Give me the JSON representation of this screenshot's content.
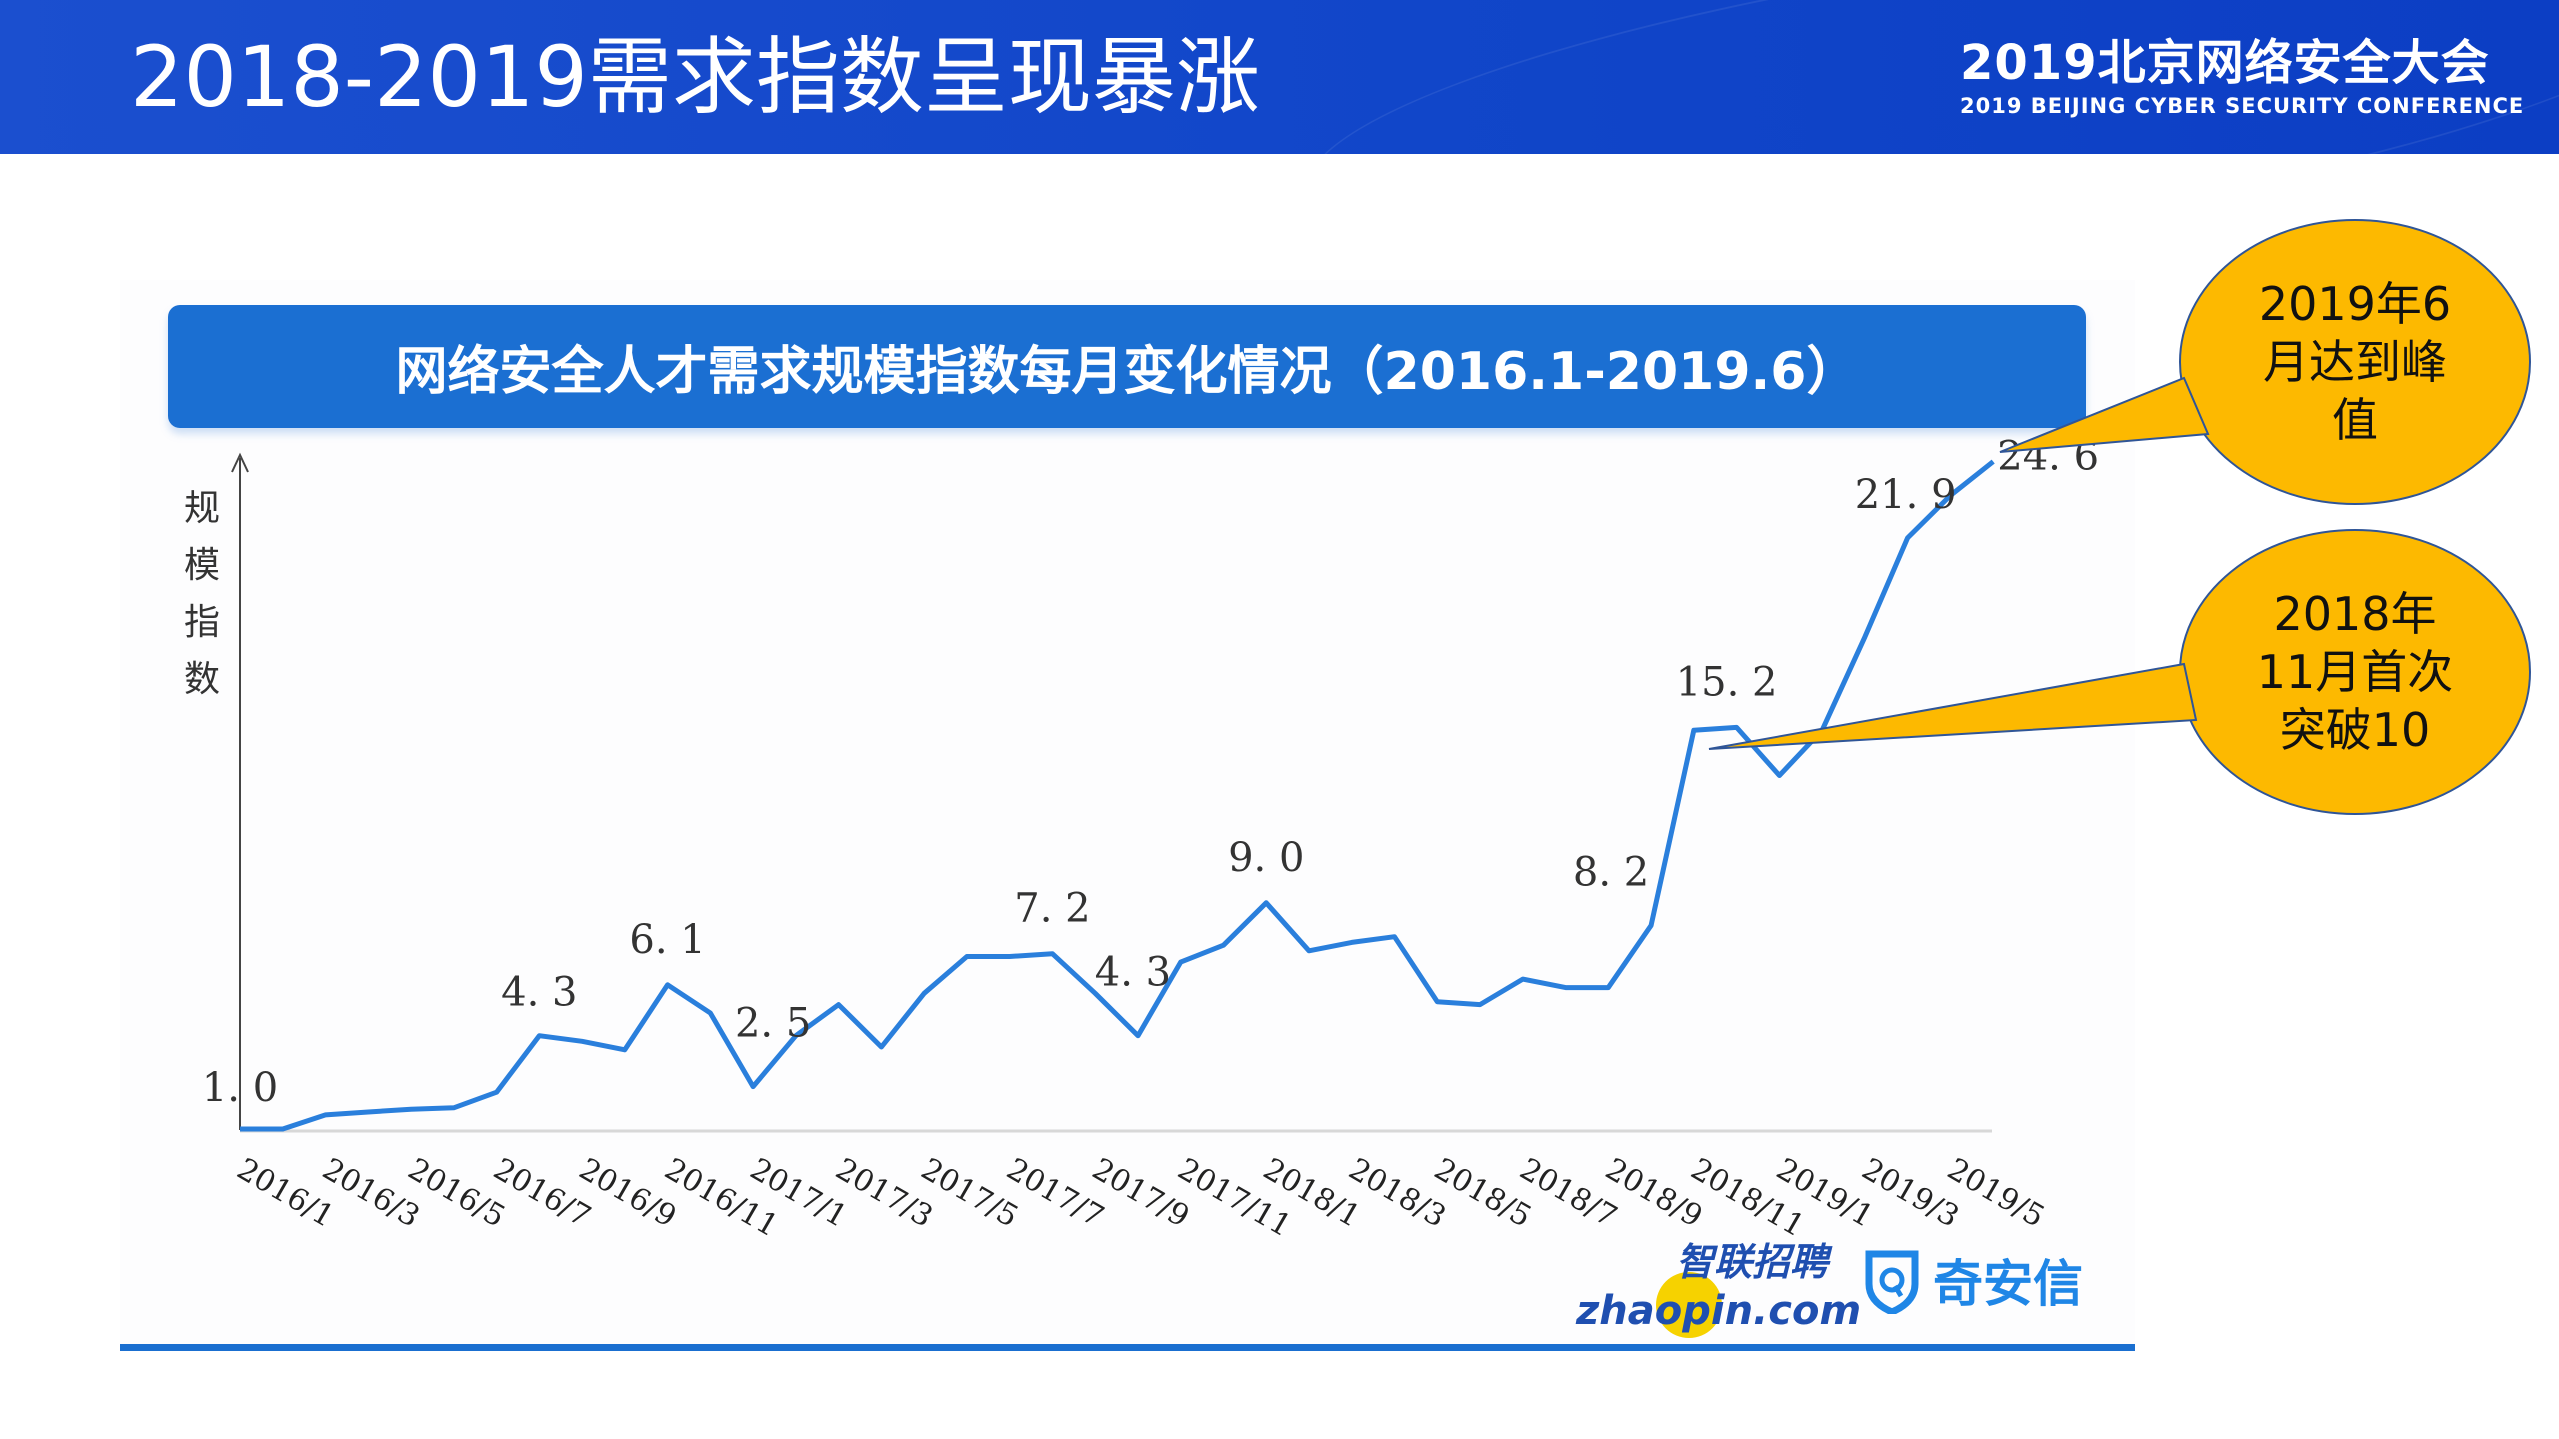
{
  "header": {
    "title": "2018-2019需求指数呈现暴涨",
    "conference_cn": "2019北京网络安全大会",
    "conference_en": "2019 BEIJING CYBER SECURITY CONFERENCE"
  },
  "colors": {
    "header_blue": "#1146c9",
    "title_bar_blue": "#1b6fd2",
    "line_blue": "#2a7fdc",
    "callout_fill": "#fdb900",
    "callout_stroke": "#2f5597"
  },
  "chart_data": {
    "type": "line",
    "title": "网络安全人才需求规模指数每月变化情况（2016.1-2019.6）",
    "xlabel": "",
    "ylabel": "规模指数",
    "ylabel_chars": [
      "规",
      "模",
      "指",
      "数"
    ],
    "grid": false,
    "x": [
      "2016/1",
      "2016/2",
      "2016/3",
      "2016/4",
      "2016/5",
      "2016/6",
      "2016/7",
      "2016/8",
      "2016/9",
      "2016/10",
      "2016/11",
      "2016/12",
      "2017/1",
      "2017/2",
      "2017/3",
      "2017/4",
      "2017/5",
      "2017/6",
      "2017/7",
      "2017/8",
      "2017/9",
      "2017/10",
      "2017/11",
      "2017/12",
      "2018/1",
      "2018/2",
      "2018/3",
      "2018/4",
      "2018/5",
      "2018/6",
      "2018/7",
      "2018/8",
      "2018/9",
      "2018/10",
      "2018/11",
      "2018/12",
      "2019/1",
      "2019/2",
      "2019/3",
      "2019/4",
      "2019/5",
      "2019/6"
    ],
    "values": [
      1.0,
      1.0,
      1.5,
      1.6,
      1.7,
      1.75,
      2.3,
      4.3,
      4.1,
      3.8,
      6.1,
      5.1,
      2.5,
      4.3,
      5.4,
      3.9,
      5.8,
      7.1,
      7.1,
      7.2,
      5.8,
      4.3,
      6.9,
      7.5,
      9.0,
      7.3,
      7.6,
      7.8,
      5.5,
      5.4,
      6.3,
      6.0,
      6.0,
      8.2,
      15.1,
      15.2,
      13.5,
      15.1,
      18.4,
      21.9,
      23.4,
      24.6
    ],
    "tick_labels": [
      "2016/1",
      "2016/3",
      "2016/5",
      "2016/7",
      "2016/9",
      "2016/11",
      "2017/1",
      "2017/3",
      "2017/5",
      "2017/7",
      "2017/9",
      "2017/11",
      "2018/1",
      "2018/3",
      "2018/5",
      "2018/7",
      "2018/9",
      "2018/11",
      "2019/1",
      "2019/3",
      "2019/5"
    ],
    "data_labels": [
      {
        "x": "2016/1",
        "label": "1.0"
      },
      {
        "x": "2016/8",
        "label": "4.3"
      },
      {
        "x": "2016/11",
        "label": "6.1"
      },
      {
        "x": "2017/1",
        "label": "2.5"
      },
      {
        "x": "2017/8",
        "label": "7.2"
      },
      {
        "x": "2017/10",
        "label": "4.3"
      },
      {
        "x": "2018/1",
        "label": "9.0"
      },
      {
        "x": "2018/10",
        "label": "8.2"
      },
      {
        "x": "2018/12",
        "label": "15.2"
      },
      {
        "x": "2019/4",
        "label": "21.9"
      },
      {
        "x": "2019/6",
        "label": "24.6"
      }
    ],
    "ylim": [
      1.0,
      24.6
    ],
    "annotations": [
      {
        "x": "2019/6",
        "lines": [
          "2019年6",
          "月达到峰",
          "值"
        ]
      },
      {
        "x": "2018/11",
        "lines": [
          "2018年",
          "11月首次",
          "突破10"
        ]
      }
    ]
  },
  "logos": {
    "zhaopin_cn": "智联招聘",
    "zhaopin_en": "zhaopin.com",
    "qianxin_cn": "奇安信"
  }
}
